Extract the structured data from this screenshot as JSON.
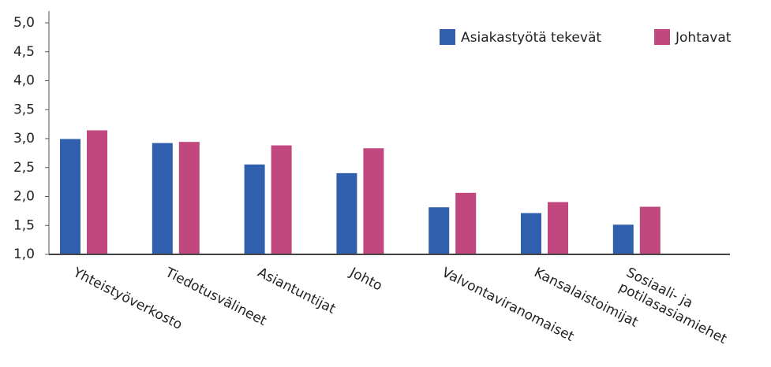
{
  "chart_data": {
    "type": "bar",
    "categories": [
      "Yhteistyöverkosto",
      "Tiedotusvälineet",
      "Asiantuntijat",
      "Johto",
      "Valvontaviranomaiset",
      "Kansalaistoimijat",
      "Sosiaali- ja\npotilasasiamiehet"
    ],
    "series": [
      {
        "name": "Asiakastyötä tekevät",
        "color": "#2f5fad",
        "values": [
          3.0,
          2.93,
          2.56,
          2.41,
          1.82,
          1.72,
          1.52
        ]
      },
      {
        "name": "Johtavat",
        "color": "#c0487e",
        "values": [
          3.15,
          2.95,
          2.89,
          2.84,
          2.07,
          1.91,
          1.83
        ]
      }
    ],
    "ylim": [
      1,
      5
    ],
    "yticks": [
      {
        "value": 1,
        "label": "1,0"
      },
      {
        "value": 1.5,
        "label": "1,5"
      },
      {
        "value": 2,
        "label": "2,0"
      },
      {
        "value": 2.5,
        "label": "2,5"
      },
      {
        "value": 3,
        "label": "3,0"
      },
      {
        "value": 3.5,
        "label": "3,5"
      },
      {
        "value": 4,
        "label": "4,0"
      },
      {
        "value": 4.5,
        "label": "4,5"
      },
      {
        "value": 5,
        "label": "5,0"
      }
    ],
    "legend": "top-right"
  }
}
